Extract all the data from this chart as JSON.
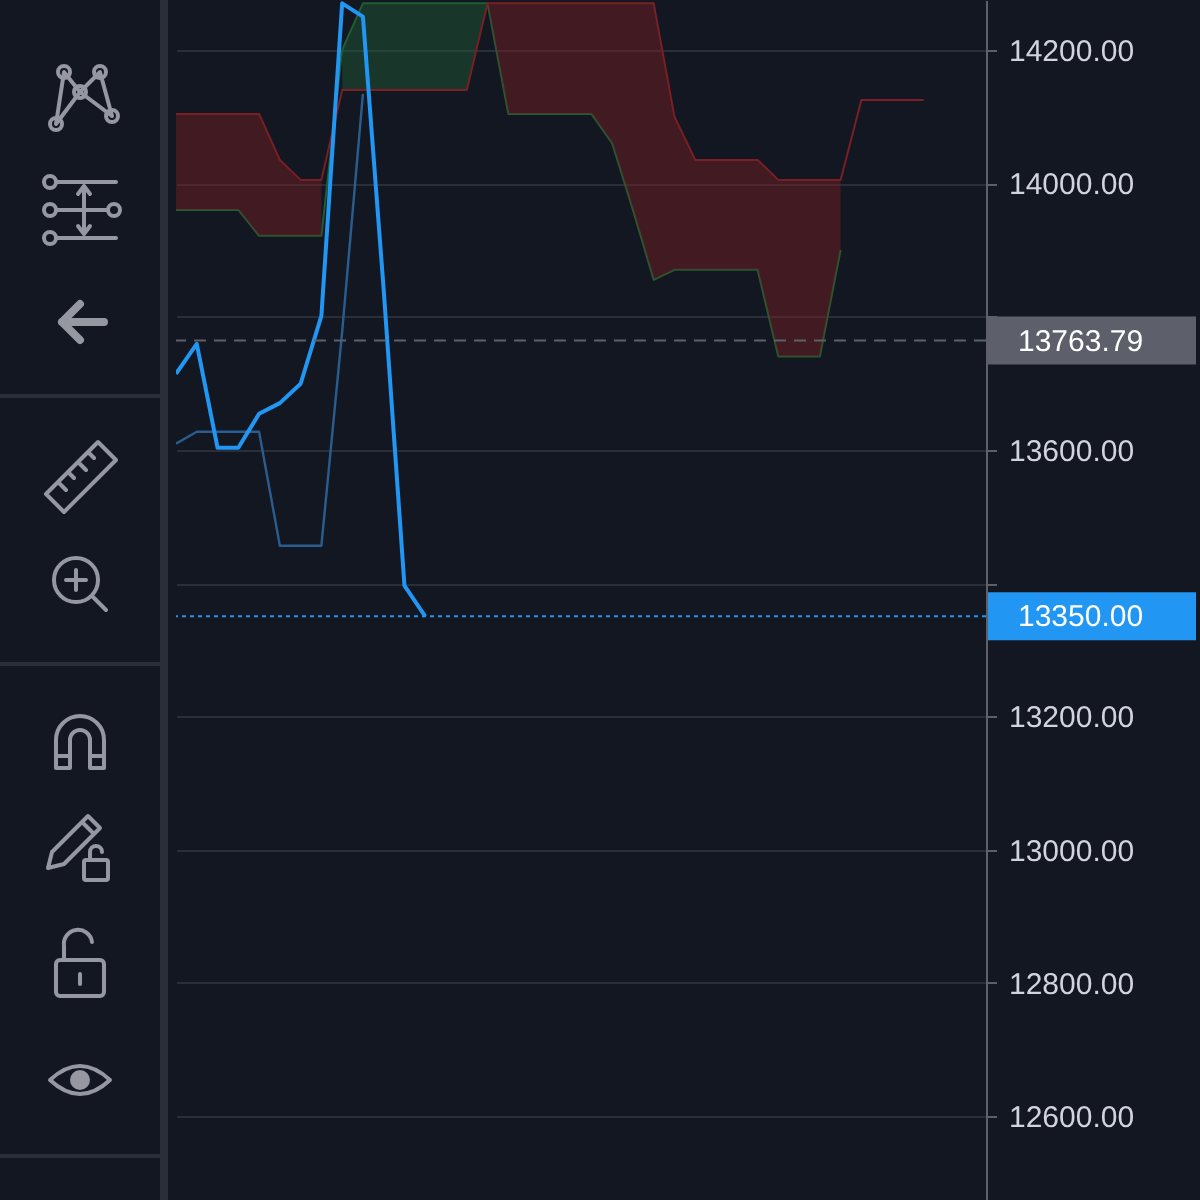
{
  "chart_data": {
    "type": "line",
    "categories": [
      null,
      null,
      null,
      null,
      null,
      null,
      null,
      null,
      null,
      null,
      null,
      null,
      null,
      null,
      null,
      null,
      null,
      null,
      null,
      null,
      null,
      null,
      null,
      null,
      null,
      null,
      null,
      null,
      null,
      null,
      null,
      null,
      null,
      null,
      null,
      null,
      null,
      null,
      null,
      null
    ],
    "series": [
      {
        "color": "#1f5e33",
        "values": [
          13960,
          13960,
          13960,
          13960,
          13921,
          13921,
          13921,
          13921,
          14200,
          14270,
          14270,
          14270,
          14270,
          14270,
          14270,
          14270,
          14104,
          14104,
          14104,
          14104,
          14104,
          14060,
          13960,
          13855,
          13870,
          13870,
          13870,
          13870,
          13870,
          13740,
          13740,
          13740,
          13900,
          null,
          null,
          null,
          null,
          null,
          null,
          null
        ]
      },
      {
        "color": "#7a1f24",
        "values": [
          14104,
          14104,
          14104,
          14104,
          14104,
          14035,
          14005,
          14005,
          14140,
          14140,
          14140,
          14140,
          14140,
          14140,
          14140,
          14270,
          14270,
          14270,
          14270,
          14270,
          14270,
          14270,
          14270,
          14270,
          14100,
          14035,
          14035,
          14035,
          14035,
          14005,
          14005,
          14005,
          14005,
          14125,
          14125,
          14125,
          14125,
          null,
          null,
          null
        ]
      },
      {
        "type": "line",
        "color": "#2a5d8f",
        "values": [
          13609,
          13627,
          13627,
          13627,
          13627,
          13456,
          13456,
          13456,
          13777,
          14134,
          null,
          null,
          null,
          null,
          null,
          null,
          null,
          null,
          null,
          null,
          null,
          null,
          null,
          null,
          null,
          null,
          null,
          null,
          null,
          null,
          null,
          null,
          null,
          null,
          null,
          null,
          null,
          null,
          null,
          null
        ]
      },
      {
        "type": "line",
        "color": "#2196f3",
        "values": [
          13714,
          13759,
          13603,
          13603,
          13654,
          13670,
          13699,
          13801,
          14270,
          14250,
          13840,
          13396,
          13350,
          null,
          null,
          null,
          null,
          null,
          null,
          null,
          null,
          null,
          null,
          null,
          null,
          null,
          null,
          null,
          null,
          null,
          null,
          null,
          null,
          null,
          null,
          null,
          null,
          null,
          null,
          null
        ]
      }
    ],
    "ylim": [
      12474,
      14275
    ],
    "yticks": [
      {
        "value": 12600,
        "label": "12600.00"
      },
      {
        "value": 12800,
        "label": "12800.00"
      },
      {
        "value": 13000,
        "label": "13000.00"
      },
      {
        "value": 13200,
        "label": "13200.00"
      },
      {
        "value": 13400,
        "label": null
      },
      {
        "value": 13600,
        "label": "13600.00"
      },
      {
        "value": 13800,
        "label": null
      },
      {
        "value": 14000,
        "label": "14000.00"
      },
      {
        "value": 14200,
        "label": "14200.00"
      }
    ],
    "ref_lines": [
      {
        "axis": "y",
        "value": 13763.79,
        "label": "13763.79",
        "color": "#5d606b",
        "line_style": "dashed"
      },
      {
        "axis": "y",
        "value": 13350,
        "label": "13350.00",
        "color": "#2196f3",
        "line_style": "dotted"
      }
    ],
    "grid": "y",
    "tick_labels": "y",
    "marker": "none"
  }
}
